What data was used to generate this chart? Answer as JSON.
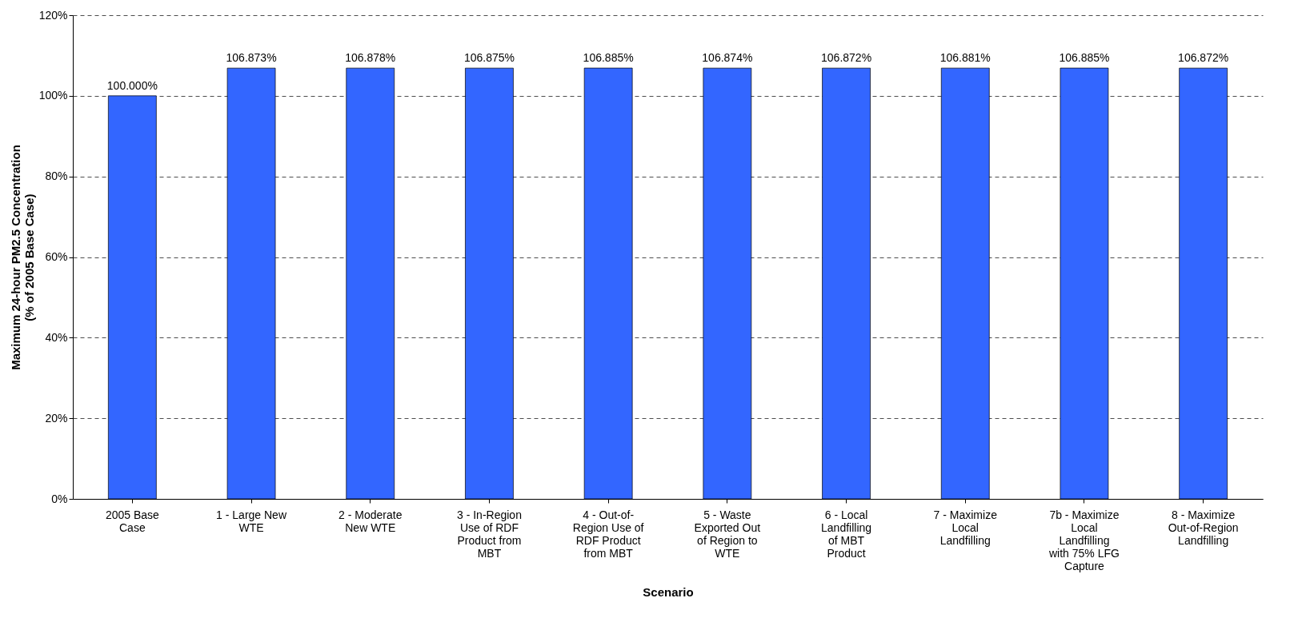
{
  "chart_data": {
    "type": "bar",
    "xlabel": "Scenario",
    "ylabel": "Maximum 24-hour PM2.5 Concentration\n(% of 2005 Base Case)",
    "categories": [
      "2005 Base Case",
      "1 - Large New WTE",
      "2 - Moderate New WTE",
      "3 - In-Region Use of RDF Product from MBT",
      "4 - Out-of-Region Use of RDF Product from MBT",
      "5 - Waste Exported Out of Region to WTE",
      "6 - Local Landfilling of MBT Product",
      "7 - Maximize Local Landfilling",
      "7b - Maximize Local Landfilling with 75% LFG Capture",
      "8 - Maximize Out-of-Region Landfilling"
    ],
    "values": [
      100.0,
      106.873,
      106.878,
      106.875,
      106.885,
      106.874,
      106.872,
      106.881,
      106.885,
      106.872
    ],
    "value_labels": [
      "100.000%",
      "106.873%",
      "106.878%",
      "106.875%",
      "106.885%",
      "106.874%",
      "106.872%",
      "106.881%",
      "106.885%",
      "106.872%"
    ],
    "color": "#3366ff",
    "ylim": [
      0,
      120
    ],
    "yticks": [
      {
        "value": 0,
        "label": "0%"
      },
      {
        "value": 20,
        "label": "20%"
      },
      {
        "value": 40,
        "label": "40%"
      },
      {
        "value": 60,
        "label": "60%"
      },
      {
        "value": 80,
        "label": "80%"
      },
      {
        "value": 100,
        "label": "100%"
      },
      {
        "value": 120,
        "label": "120%"
      }
    ],
    "grid": "y"
  }
}
